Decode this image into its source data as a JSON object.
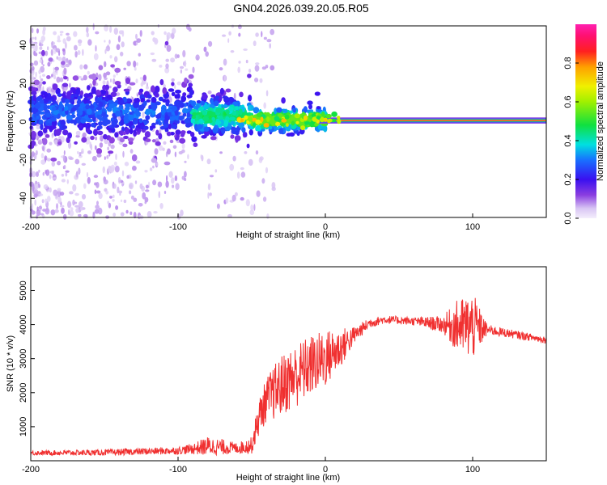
{
  "title": "GN04.2026.039.20.05.R05",
  "chart_data": [
    {
      "type": "heatmap",
      "name": "spectrogram",
      "title": "GN04.2026.039.20.05.R05",
      "xlabel": "Height of straight line (km)",
      "ylabel": "Frequency (Hz)",
      "xlim": [
        -200,
        150
      ],
      "ylim": [
        -50,
        50
      ],
      "xticks": [
        -200,
        -100,
        0,
        100
      ],
      "xtick_labels": [
        "-200",
        "-100",
        "0",
        "100"
      ],
      "yticks": [
        -40,
        -20,
        0,
        20,
        40
      ],
      "ytick_labels": [
        "-40",
        "-20",
        "0",
        "20",
        "40"
      ],
      "colorbar": {
        "label": "Normalized spectral amplitude",
        "range": [
          0,
          1
        ],
        "ticks": [
          0.0,
          0.2,
          0.4,
          0.6,
          0.8
        ],
        "tick_labels": [
          "0.0",
          "0.2",
          "0.4",
          "0.6",
          "0.8"
        ],
        "colormap": "rainbow (white-lavender, violet, blue, cyan, green, yellow, orange, red, magenta)"
      },
      "features": [
        {
          "x_range": [
            -200,
            -90
          ],
          "freq_center": 5,
          "freq_spread": 8,
          "amplitude": 0.2,
          "note": "broad violet/blue scatter"
        },
        {
          "x_range": [
            -90,
            -50
          ],
          "freq_center": 3,
          "freq_spread": 5,
          "amplitude": 0.35,
          "note": "green dots near 0 Hz"
        },
        {
          "x_range": [
            -50,
            0
          ],
          "freq_center": 1,
          "freq_spread": 3,
          "amplitude": 0.5,
          "note": "narrowing line, green/cyan"
        },
        {
          "x_range": [
            0,
            150
          ],
          "freq_center": 0.5,
          "freq_spread": 1,
          "amplitude": 0.95,
          "note": "narrow red/magenta line"
        }
      ]
    },
    {
      "type": "line",
      "name": "snr",
      "xlabel": "Height of straight line (km)",
      "ylabel": "SNR (10 * v/v)",
      "xlim": [
        -200,
        150
      ],
      "ylim": [
        0,
        5700
      ],
      "xticks": [
        -200,
        -100,
        0,
        100
      ],
      "xtick_labels": [
        "-200",
        "-100",
        "0",
        "100"
      ],
      "yticks": [
        1000,
        2000,
        3000,
        4000,
        5000
      ],
      "ytick_labels": [
        "1000",
        "2000",
        "3000",
        "4000",
        "5000"
      ],
      "color": "#f03030",
      "envelope": {
        "x": [
          -200,
          -150,
          -100,
          -90,
          -80,
          -70,
          -60,
          -50,
          -45,
          -40,
          -35,
          -30,
          -20,
          -10,
          0,
          10,
          20,
          30,
          40,
          60,
          80,
          90,
          100,
          110,
          130,
          150
        ],
        "mean": [
          230,
          240,
          300,
          350,
          430,
          400,
          370,
          450,
          1300,
          1800,
          2000,
          2200,
          2500,
          2800,
          3000,
          3300,
          3700,
          4050,
          4150,
          4100,
          4000,
          3950,
          3950,
          3850,
          3700,
          3550
        ],
        "amp": [
          70,
          90,
          110,
          160,
          280,
          230,
          160,
          250,
          550,
          650,
          800,
          900,
          950,
          900,
          850,
          600,
          250,
          150,
          120,
          120,
          250,
          800,
          1000,
          150,
          120,
          100
        ]
      }
    }
  ]
}
